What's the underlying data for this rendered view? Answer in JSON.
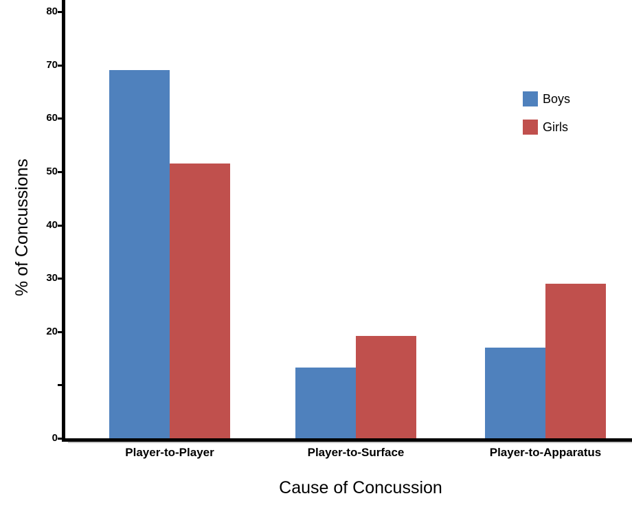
{
  "chart_data": {
    "type": "bar",
    "title": "",
    "xlabel": "Cause of Concussion",
    "ylabel": "% of Concussions",
    "categories": [
      "Player-to-Player",
      "Player-to-Surface",
      "Player-to-Apparatus"
    ],
    "series": [
      {
        "name": "Boys",
        "color": "#4F81BD",
        "values": [
          69.0,
          13.3,
          17.0
        ]
      },
      {
        "name": "Girls",
        "color": "#C0504D",
        "values": [
          51.5,
          19.2,
          29.0
        ]
      }
    ],
    "ylim": [
      0,
      80
    ],
    "yticks_labeled": [
      80,
      70,
      60,
      50,
      40,
      30,
      20,
      0
    ],
    "yticks_unlabeled": [
      10
    ],
    "grid": false,
    "legend_position": "upper-right",
    "axis_color": "#000000",
    "text_color": "#000000",
    "bar_color_boys": "#4F81BD",
    "bar_color_girls": "#C0504D"
  }
}
